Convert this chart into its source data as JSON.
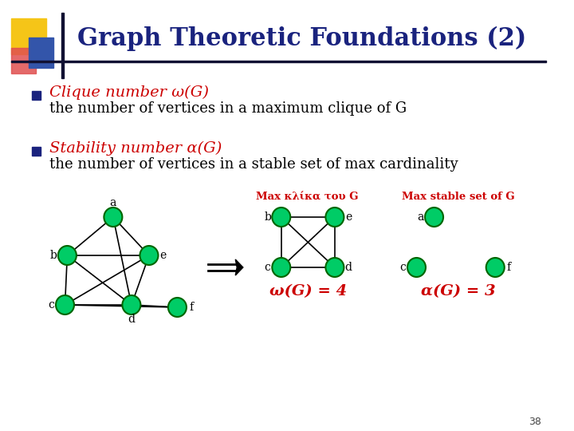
{
  "title": "Graph Theoretic Foundations (2)",
  "title_color": "#1a237e",
  "title_fontsize": 22,
  "bullet1_red": "Clique number ω(G)",
  "bullet1_black": "the number of vertices in a maximum clique of G",
  "bullet2_red": "Stability number α(G)",
  "bullet2_black": "the number of vertices in a stable set of max cardinality",
  "red_color": "#cc0000",
  "black_color": "#000000",
  "green_node_color": "#00cc66",
  "node_edge_color": "#006600",
  "bg_color": "#ffffff",
  "bullet_color": "#1a237e",
  "label_clique": "Max κλίκα τoυ G",
  "label_stable": "Max stable set of G",
  "omega_eq": "ω(G) = 4",
  "alpha_eq": "α(G) = 3",
  "slide_number": "38"
}
